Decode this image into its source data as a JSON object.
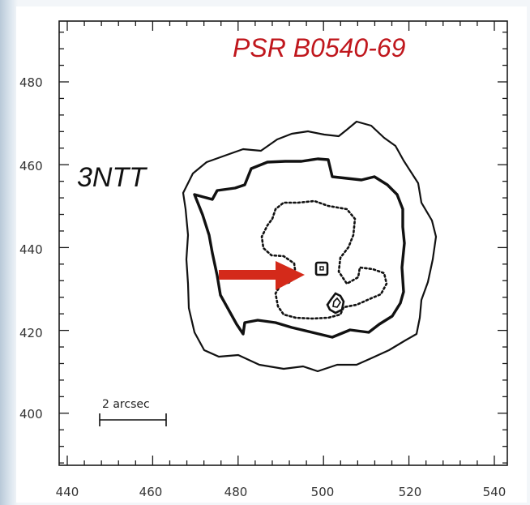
{
  "figure": {
    "title": "PSR B0540-69",
    "panel_label": "3NTT",
    "scale_bar_label": "2 arcsec",
    "x_ticks": [
      "440",
      "460",
      "480",
      "500",
      "520",
      "540"
    ],
    "y_ticks": [
      "480",
      "460",
      "440",
      "420",
      "400"
    ],
    "colors": {
      "title": "#c0171d",
      "arrow": "#d42a1a",
      "contour": "#111111",
      "background": "#ffffff"
    },
    "contours": [
      {
        "name": "outer-contour",
        "style": "solid"
      },
      {
        "name": "middle-contour",
        "style": "solid-thick"
      },
      {
        "name": "inner-contour",
        "style": "dotted"
      },
      {
        "name": "pulsar-knot",
        "style": "solid"
      },
      {
        "name": "southern-knot",
        "style": "solid"
      }
    ],
    "arrow": {
      "icon": "right-arrow-icon",
      "points_to": "pulsar-knot"
    }
  }
}
